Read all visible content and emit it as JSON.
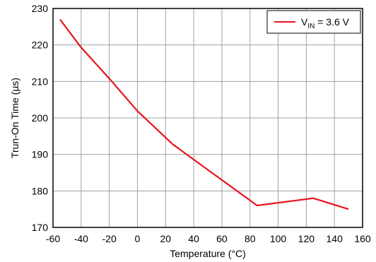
{
  "chart_data": {
    "type": "line",
    "title": "",
    "xlabel": "Temperature (°C)",
    "ylabel": "Trun-On Time (µs)",
    "xlim": [
      -60,
      160
    ],
    "ylim": [
      170,
      230
    ],
    "xticks": [
      -60,
      -40,
      -20,
      0,
      20,
      40,
      60,
      80,
      100,
      120,
      140,
      160
    ],
    "yticks": [
      170,
      180,
      190,
      200,
      210,
      220,
      230
    ],
    "grid": true,
    "legend_position": "top-right",
    "legend": {
      "main": "V",
      "sub": "IN",
      "rest": " = 3.6 V"
    },
    "series": [
      {
        "name": "VIN = 3.6 V",
        "color": "#e8141c",
        "x": [
          -55,
          -40,
          -20,
          0,
          25,
          85,
          125,
          150
        ],
        "y": [
          227,
          219.3,
          210.8,
          201.9,
          192.8,
          176,
          178,
          175
        ]
      }
    ]
  }
}
